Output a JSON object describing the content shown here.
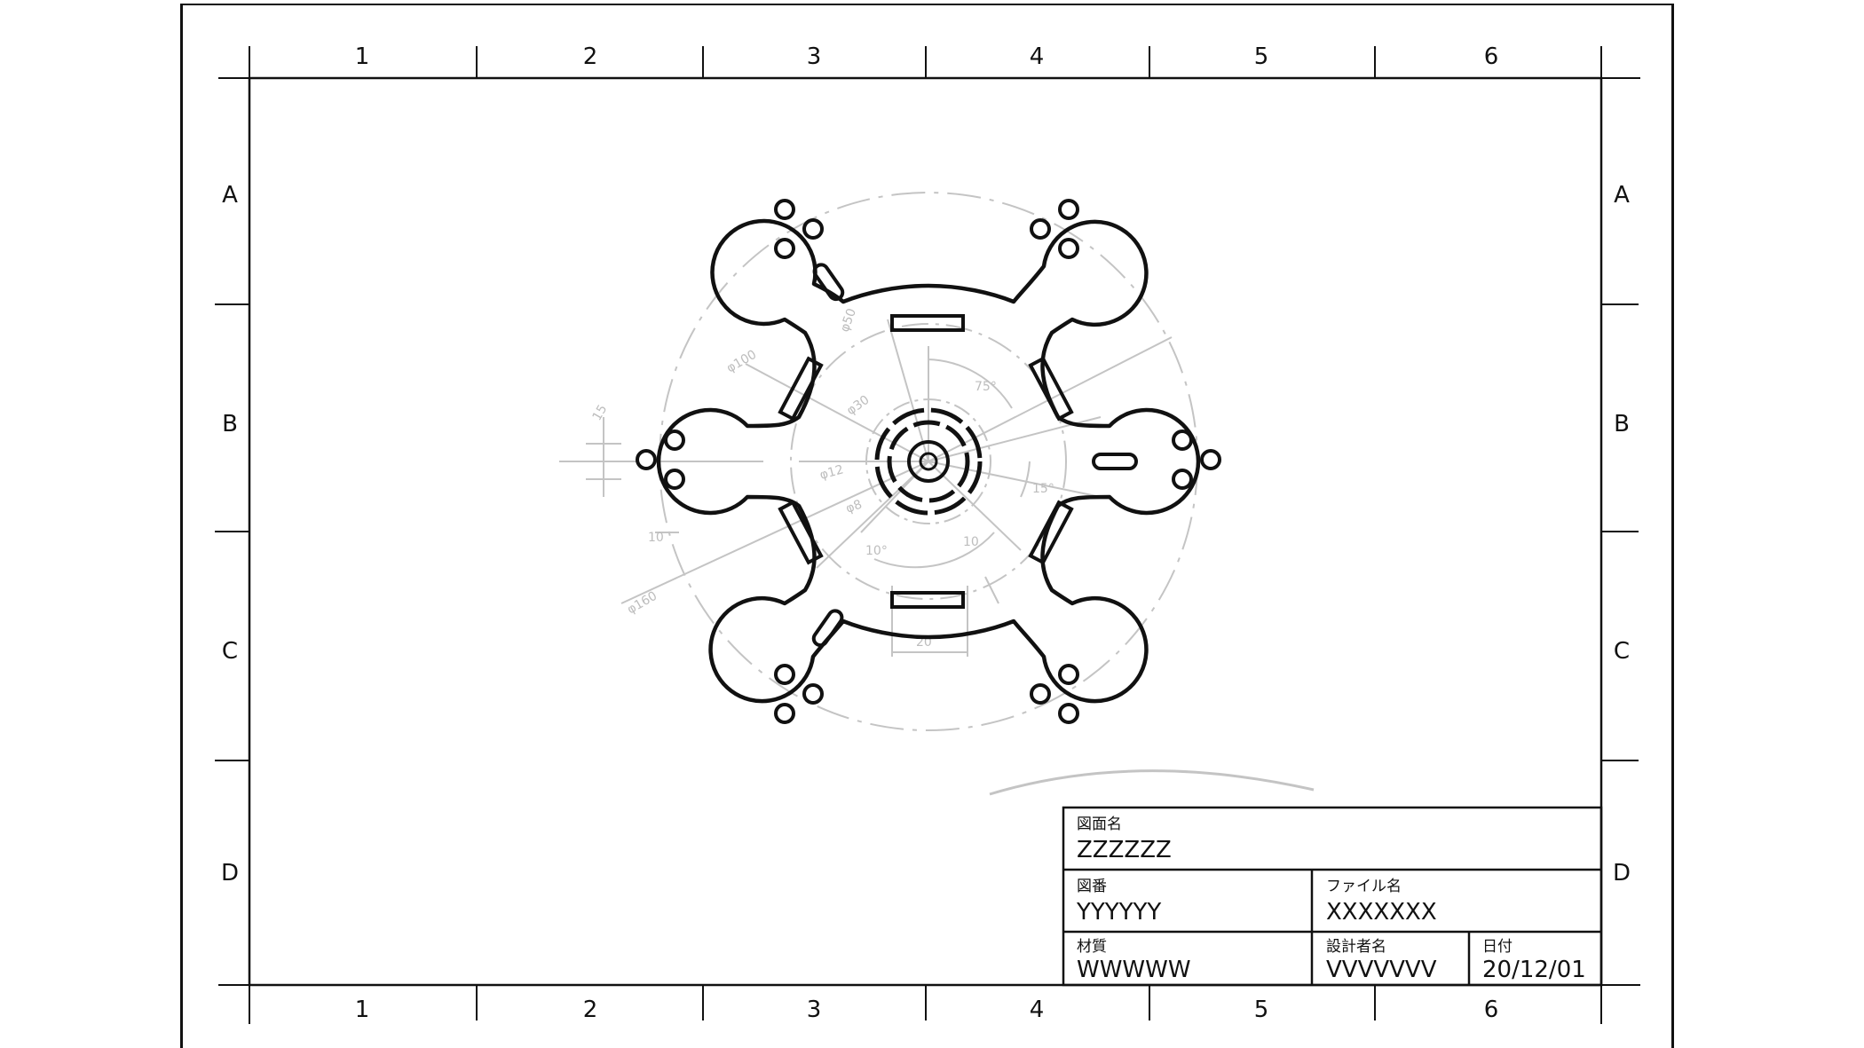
{
  "zones": {
    "columns": [
      "1",
      "2",
      "3",
      "4",
      "5",
      "6"
    ],
    "rows": [
      "A",
      "B",
      "C",
      "D"
    ]
  },
  "title_block": {
    "drawing_name": {
      "label": "図面名",
      "value": "ZZZZZZ"
    },
    "drawing_number": {
      "label": "図番",
      "value": "YYYYYY"
    },
    "file_name": {
      "label": "ファイル名",
      "value": "XXXXXXX"
    },
    "material": {
      "label": "材質",
      "value": "WWWWW"
    },
    "designer": {
      "label": "設計者名",
      "value": "VVVVVVV"
    },
    "date": {
      "label": "日付",
      "value": "20/12/01"
    }
  },
  "dimensions": {
    "phi100": "φ100",
    "phi160": "φ160",
    "phi50": "φ50",
    "phi30": "φ30",
    "phi12": "φ12",
    "phi8": "φ8",
    "ang75": "75°",
    "ang15": "15°",
    "ang10": "10°",
    "ten": "10",
    "twenty": "20",
    "fifteen": "15"
  },
  "colors": {
    "line": "#111111",
    "dimension": "#bdbdbd"
  }
}
